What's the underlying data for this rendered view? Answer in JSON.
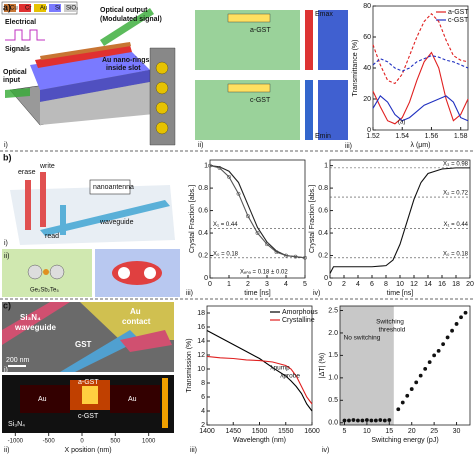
{
  "panels": {
    "a": "a)",
    "b": "b)",
    "c": "c)"
  },
  "sublabels": [
    "i)",
    "ii)",
    "iii)",
    "iv)"
  ],
  "a_i": {
    "legend": [
      "Cu",
      "Cr",
      "Au",
      "Si",
      "SiO₂"
    ],
    "output": "Optical output",
    "output2": "(Modulated signal)",
    "electrical": "Electrical",
    "signals": "Signals",
    "input": "Optical",
    "input2": "input",
    "rings": "Au nano-rings",
    "rings2": "inside slot"
  },
  "a_ii": {
    "top": "a-GST",
    "bottom": "c-GST",
    "emax": "Emax",
    "emin": "Emin"
  },
  "b_i": {
    "erase": "erase",
    "write": "write",
    "read": "read",
    "antenna": "nanoantenna",
    "waveguide": "waveguide"
  },
  "b_ii": {
    "material": "Ge₂Sb₂Te₅"
  },
  "c_i": {
    "wg1": "Si₃N₄",
    "wg2": "waveguide",
    "contact1": "Au",
    "contact2": "contact",
    "gst": "GST",
    "scale": "200 nm"
  },
  "c_ii": {
    "a": "a-GST",
    "c": "c-GST",
    "au": "Au",
    "si": "Si₃N₄",
    "xlabel": "X position (nm)",
    "xlim": [
      -1200,
      1200
    ],
    "xticks": [
      -1000,
      -500,
      0,
      500,
      1000
    ]
  },
  "chart_data": [
    {
      "type": "line",
      "xlabel": "λ (μm)",
      "ylabel": "Transmittance (%)",
      "annotation": "(a)",
      "x": [
        1.52,
        1.525,
        1.53,
        1.535,
        1.54,
        1.545,
        1.55,
        1.555,
        1.56,
        1.565,
        1.57,
        1.575,
        1.58,
        1.585
      ],
      "xlim": [
        1.52,
        1.585
      ],
      "xticks": [
        1.52,
        1.54,
        1.56,
        1.58
      ],
      "ylim": [
        0,
        80
      ],
      "yticks": [
        0,
        20,
        40,
        60,
        80
      ],
      "series": [
        {
          "name": "a-GST",
          "color": "#e02020",
          "values": [
            25,
            15,
            6,
            4,
            8,
            18,
            32,
            44,
            50,
            40,
            20,
            6,
            10,
            20
          ]
        },
        {
          "name": "c-GST",
          "color": "#2030c0",
          "values": [
            14,
            22,
            18,
            10,
            6,
            8,
            12,
            16,
            18,
            20,
            22,
            18,
            8,
            6
          ]
        },
        {
          "color": "#e02020",
          "dashed": true,
          "values": [
            55,
            42,
            32,
            30,
            36,
            48,
            60,
            70,
            75,
            70,
            58,
            48,
            45,
            44
          ]
        },
        {
          "color": "#2030c0",
          "dashed": true,
          "values": [
            42,
            46,
            44,
            40,
            38,
            40,
            44,
            46,
            48,
            47,
            45,
            44,
            42,
            40
          ]
        }
      ]
    },
    {
      "type": "line",
      "xlabel": "time [ns]",
      "ylabel": "Crystal Fraction [abs.]",
      "x": [
        0,
        0.5,
        1,
        1.5,
        2,
        2.5,
        3,
        3.5,
        4,
        4.5,
        5
      ],
      "xlim": [
        0,
        5
      ],
      "xticks": [
        0,
        1,
        2,
        3,
        4,
        5
      ],
      "ylim": [
        0,
        1.05
      ],
      "yticks": [
        0,
        0.2,
        0.4,
        0.6,
        0.8,
        1
      ],
      "levels": [
        {
          "value": 0.44,
          "label": "X₁ = 0.44"
        },
        {
          "value": 0.18,
          "label": "X₀ = 0.18"
        }
      ],
      "annotation": "Xₑₙₔ = 0.18 ± 0.02",
      "series": [
        {
          "color": "#222222",
          "values": [
            1,
            0.99,
            0.95,
            0.85,
            0.65,
            0.45,
            0.32,
            0.24,
            0.2,
            0.19,
            0.18
          ]
        },
        {
          "color": "#555555",
          "markers": true,
          "values": [
            1,
            0.98,
            0.9,
            0.75,
            0.55,
            0.4,
            0.3,
            0.23,
            0.2,
            0.19,
            0.18
          ]
        }
      ]
    },
    {
      "type": "line",
      "xlabel": "time [ns]",
      "ylabel": "Crystal Fraction [abs.]",
      "x": [
        0,
        0.5,
        2,
        4,
        6,
        8,
        9,
        10,
        11,
        12,
        13,
        14,
        16,
        18,
        20
      ],
      "xlim": [
        0,
        20
      ],
      "xticks": [
        0,
        2,
        4,
        6,
        8,
        10,
        12,
        14,
        16,
        18,
        20
      ],
      "ylim": [
        0,
        1.05
      ],
      "yticks": [
        0,
        0.2,
        0.4,
        0.6,
        0.8,
        1
      ],
      "levels": [
        {
          "value": 0.98,
          "label": "X₃ = 0.98"
        },
        {
          "value": 0.72,
          "label": "X₂ = 0.72"
        },
        {
          "value": 0.44,
          "label": "X₁ = 0.44"
        },
        {
          "value": 0.18,
          "label": "X₀ = 0.18"
        }
      ],
      "series": [
        {
          "color": "#111111",
          "values": [
            0.04,
            0.1,
            0.1,
            0.1,
            0.1,
            0.11,
            0.16,
            0.3,
            0.5,
            0.7,
            0.85,
            0.93,
            0.97,
            0.98,
            0.98
          ]
        }
      ]
    },
    {
      "type": "line",
      "xlabel": "Wavelength (nm)",
      "ylabel": "Transmission (%)",
      "annotations": [
        "λpump",
        "λprobe"
      ],
      "x": [
        1400,
        1425,
        1450,
        1475,
        1500,
        1525,
        1550,
        1560,
        1570,
        1580,
        1590,
        1600
      ],
      "xlim": [
        1400,
        1600
      ],
      "xticks": [
        1400,
        1450,
        1500,
        1550,
        1600
      ],
      "ylim": [
        2,
        19
      ],
      "yticks": [
        2,
        4,
        6,
        8,
        10,
        12,
        14,
        16,
        18
      ],
      "series": [
        {
          "name": "Amorphous",
          "color": "#000000",
          "values": [
            15.5,
            14.5,
            13.5,
            12.5,
            11.5,
            10.2,
            9,
            8.3,
            7.5,
            6.5,
            5,
            4
          ]
        },
        {
          "name": "Crystalline",
          "color": "#e02020",
          "values": [
            11.8,
            11.6,
            11.5,
            11.3,
            11.2,
            11,
            10.5,
            10,
            9,
            7.5,
            6,
            5
          ]
        }
      ]
    },
    {
      "type": "scatter",
      "xlabel": "Switching energy (pJ)",
      "ylabel": "|ΔT| (%)",
      "annotations": [
        "No switching",
        "Switching",
        "threshold"
      ],
      "shade_x": [
        4,
        16
      ],
      "x": [
        5,
        6,
        7,
        8,
        9,
        10,
        11,
        12,
        13,
        14,
        15,
        17,
        18,
        19,
        20,
        21,
        22,
        23,
        24,
        25,
        26,
        27,
        28,
        29,
        30,
        31,
        32
      ],
      "xlim": [
        4,
        33
      ],
      "xticks": [
        5,
        10,
        15,
        20,
        25,
        30
      ],
      "ylim": [
        -0.05,
        2.6
      ],
      "yticks": [
        {
          "value": 0,
          "label": "0.0"
        },
        0.5,
        {
          "value": 1,
          "label": "1.0"
        },
        1.5,
        {
          "value": 2,
          "label": "2.0"
        },
        2.5
      ],
      "series": [
        {
          "color": "#111111",
          "values": [
            0.05,
            0.05,
            0.06,
            0.05,
            0.05,
            0.06,
            0.05,
            0.05,
            0.06,
            0.05,
            0.06,
            0.3,
            0.45,
            0.6,
            0.75,
            0.9,
            1.05,
            1.2,
            1.35,
            1.5,
            1.6,
            1.75,
            1.9,
            2.05,
            2.2,
            2.35,
            2.45
          ]
        }
      ]
    }
  ]
}
